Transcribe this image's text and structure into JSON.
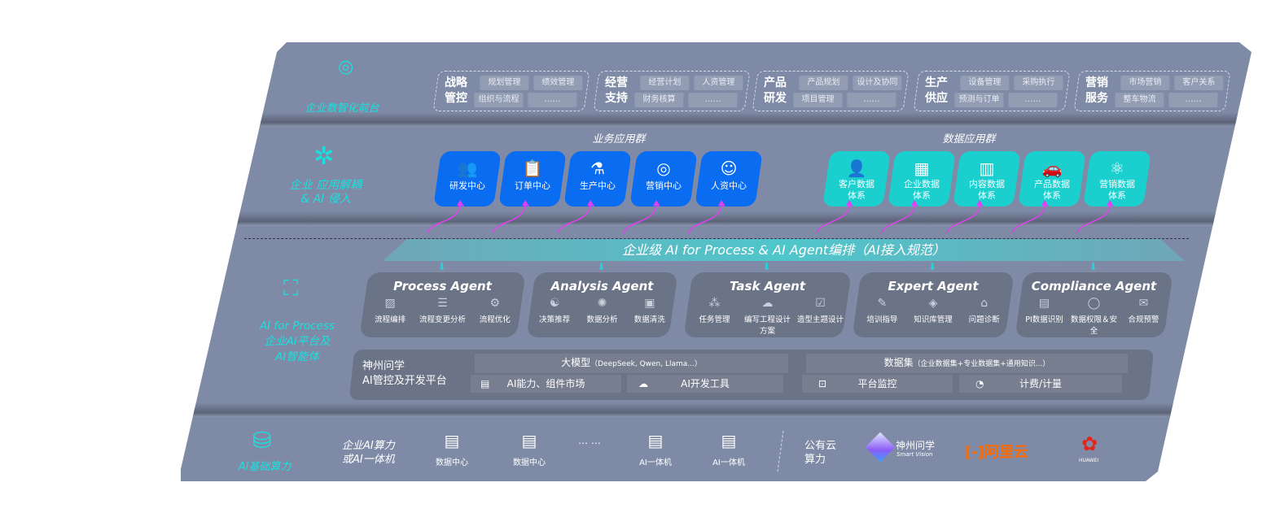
{
  "front": {
    "label": "企业数智化前台",
    "icon": "brain-icon",
    "groups": [
      {
        "title": [
          "战略",
          "管控"
        ],
        "items": [
          "规划管理",
          "绩效管理",
          "组织与流程",
          "……"
        ]
      },
      {
        "title": [
          "经营",
          "支持"
        ],
        "items": [
          "经营计划",
          "人资管理",
          "财务核算",
          "……"
        ]
      },
      {
        "title": [
          "产品",
          "研发"
        ],
        "items": [
          "产品规划",
          "设计及协同",
          "项目管理",
          "……"
        ]
      },
      {
        "title": [
          "生产",
          "供应"
        ],
        "items": [
          "设备管理",
          "采购执行",
          "预测与订单",
          "……"
        ]
      },
      {
        "title": [
          "营销",
          "服务"
        ],
        "items": [
          "市场营销",
          "客户关系",
          "整车物流",
          "……"
        ]
      }
    ]
  },
  "apps": {
    "label": [
      "企业 应用解耦",
      "& AI 侵入"
    ],
    "icon": "molecule-icon",
    "business": {
      "title": "业务应用群",
      "color": "#0a6cf0",
      "items": [
        {
          "label": "研发中心",
          "icon": "team-icon"
        },
        {
          "label": "订单中心",
          "icon": "clipboard-icon"
        },
        {
          "label": "生产中心",
          "icon": "factory-icon"
        },
        {
          "label": "营销中心",
          "icon": "target-icon"
        },
        {
          "label": "人资中心",
          "icon": "person-icon"
        }
      ]
    },
    "data": {
      "title": "数据应用群",
      "color": "#1bcfcf",
      "items": [
        {
          "label": "客户数据体系",
          "icon": "user-icon"
        },
        {
          "label": "企业数据体系",
          "icon": "building-icon"
        },
        {
          "label": "内容数据体系",
          "icon": "books-icon"
        },
        {
          "label": "产品数据体系",
          "icon": "car-icon"
        },
        {
          "label": "营销数据体系",
          "icon": "atom-icon"
        }
      ]
    }
  },
  "banner": "企业级 AI for Process & AI Agent编排（AI接入规范）",
  "ai": {
    "label": [
      "AI for Process",
      "企业AI平台及",
      "AI智能体"
    ],
    "icon": "face-scan-icon",
    "agents": [
      {
        "name": "Process Agent",
        "items": [
          "流程编排",
          "流程变更分析",
          "流程优化"
        ]
      },
      {
        "name": "Analysis Agent",
        "items": [
          "决策推荐",
          "数据分析",
          "数据清洗"
        ]
      },
      {
        "name": "Task Agent",
        "items": [
          "任务管理",
          "编写工程设计方案",
          "造型主题设计"
        ]
      },
      {
        "name": "Expert Agent",
        "items": [
          "培训指导",
          "知识库管理",
          "问题诊断"
        ]
      },
      {
        "name": "Compliance Agent",
        "items": [
          "PI数据识别",
          "数据权限＆安全",
          "合规预警"
        ]
      }
    ],
    "platform": {
      "title": [
        "神州问学",
        "AI管控及开发平台"
      ],
      "model": "大模型",
      "model_note": "（DeepSeek, Qwen, Llama...）",
      "dataset": "数据集",
      "dataset_note": "（企业数据集+专业数据集+通用知识...）",
      "tools": [
        "AI能力、组件市场",
        "AI开发工具",
        "平台监控",
        "计费/计量"
      ]
    }
  },
  "infra": {
    "label": "AI基础算力",
    "icon": "database-icon",
    "enterprise": [
      "企业AI算力",
      "或AI一体机"
    ],
    "items": [
      "数据中心",
      "数据中心",
      "AI一体机",
      "AI一体机"
    ],
    "ellipsis": "… …",
    "public": [
      "公有云",
      "算力"
    ],
    "logos": {
      "sv_cn": "神州问学",
      "sv_en": "Smart Vision",
      "aliyun": "阿里云",
      "huawei": "HUAWEI"
    },
    "colors": {
      "aliyun": "#ff6a00",
      "huawei": "#e3251b"
    }
  }
}
